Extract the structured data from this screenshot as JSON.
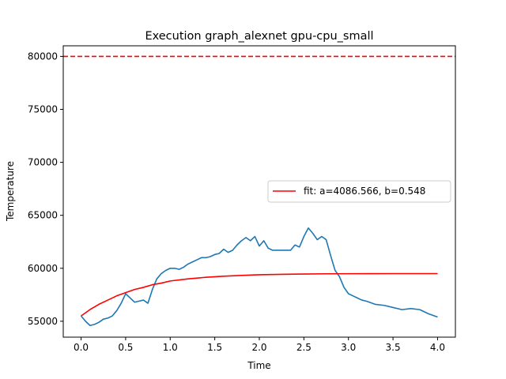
{
  "chart_data": {
    "type": "line",
    "title": "Execution graph_alexnet gpu-cpu_small",
    "xlabel": "Time",
    "ylabel": "Temperature",
    "xlim": [
      -0.2,
      4.2
    ],
    "ylim": [
      53500,
      81000
    ],
    "xticks": [
      0.0,
      0.5,
      1.0,
      1.5,
      2.0,
      2.5,
      3.0,
      3.5,
      4.0
    ],
    "xtick_labels": [
      "0.0",
      "0.5",
      "1.0",
      "1.5",
      "2.0",
      "2.5",
      "3.0",
      "3.5",
      "4.0"
    ],
    "yticks": [
      55000,
      60000,
      65000,
      70000,
      75000,
      80000
    ],
    "ytick_labels": [
      "55000",
      "60000",
      "65000",
      "70000",
      "75000",
      "80000"
    ],
    "grid": false,
    "legend_position": "center-right",
    "threshold": {
      "y": 80000,
      "color": "#ff0000",
      "style": "dashed"
    },
    "series": [
      {
        "color": "#1f77b4",
        "x": [
          0.0,
          0.05,
          0.1,
          0.15,
          0.2,
          0.25,
          0.3,
          0.35,
          0.4,
          0.45,
          0.5,
          0.55,
          0.6,
          0.65,
          0.7,
          0.75,
          0.8,
          0.85,
          0.9,
          0.95,
          1.0,
          1.05,
          1.1,
          1.15,
          1.2,
          1.25,
          1.3,
          1.35,
          1.4,
          1.45,
          1.5,
          1.55,
          1.6,
          1.65,
          1.7,
          1.75,
          1.8,
          1.85,
          1.9,
          1.95,
          2.0,
          2.05,
          2.1,
          2.15,
          2.2,
          2.25,
          2.3,
          2.35,
          2.4,
          2.45,
          2.5,
          2.55,
          2.6,
          2.65,
          2.7,
          2.75,
          2.8,
          2.85,
          2.9,
          2.95,
          3.0,
          3.05,
          3.1,
          3.15,
          3.2,
          3.3,
          3.4,
          3.5,
          3.6,
          3.7,
          3.8,
          3.9,
          4.0
        ],
        "values": [
          55500,
          55000,
          54600,
          54700,
          54900,
          55200,
          55300,
          55500,
          56000,
          56700,
          57600,
          57200,
          56800,
          56900,
          57000,
          56700,
          58000,
          59000,
          59500,
          59800,
          60000,
          60000,
          59900,
          60100,
          60400,
          60600,
          60800,
          61000,
          61000,
          61100,
          61300,
          61400,
          61800,
          61500,
          61700,
          62200,
          62600,
          62900,
          62600,
          63000,
          62100,
          62600,
          61900,
          61700,
          61700,
          61700,
          61700,
          61700,
          62200,
          62000,
          63000,
          63800,
          63300,
          62700,
          63000,
          62700,
          61200,
          59800,
          59200,
          58200,
          57600,
          57400,
          57200,
          57000,
          56900,
          56600,
          56500,
          56300,
          56100,
          56200,
          56100,
          55700,
          55400
        ]
      },
      {
        "name": "fit: a=4086.566, b=0.548",
        "color": "#ff0000",
        "x": [
          0.0,
          0.1,
          0.2,
          0.3,
          0.4,
          0.5,
          0.6,
          0.7,
          0.8,
          0.9,
          1.0,
          1.2,
          1.4,
          1.6,
          1.8,
          2.0,
          2.25,
          2.5,
          2.75,
          3.0,
          3.25,
          3.5,
          3.75,
          4.0
        ],
        "values": [
          55500,
          56100,
          56600,
          57000,
          57400,
          57700,
          58000,
          58200,
          58450,
          58600,
          58800,
          59000,
          59150,
          59250,
          59330,
          59390,
          59430,
          59460,
          59480,
          59490,
          59495,
          59500,
          59500,
          59500
        ]
      }
    ]
  }
}
